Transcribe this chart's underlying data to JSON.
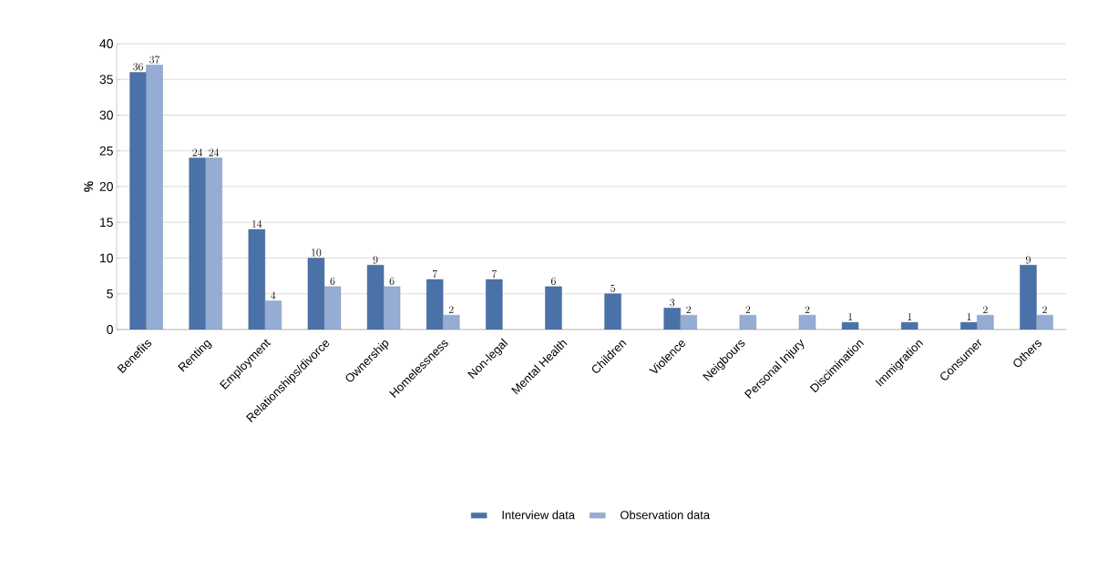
{
  "chart_data": {
    "type": "bar",
    "ylabel": "%",
    "categories": [
      "Benefits",
      "Renting",
      "Employment",
      "Relationships/divorce",
      "Ownership",
      "Homelessness",
      "Non-legal",
      "Mental Health",
      "Children",
      "Violence",
      "Neigbours",
      "Personal Injury",
      "Discimination",
      "Immigration",
      "Consumer",
      "Others"
    ],
    "series": [
      {
        "name": "Interview data",
        "color": "#4a72a8",
        "values": [
          36,
          24,
          14,
          10,
          9,
          7,
          7,
          6,
          5,
          3,
          null,
          null,
          1,
          1,
          1,
          9
        ]
      },
      {
        "name": "Observation data",
        "color": "#95acd4",
        "values": [
          37,
          24,
          4,
          6,
          6,
          2,
          null,
          null,
          null,
          2,
          2,
          2,
          null,
          null,
          2,
          2
        ]
      }
    ],
    "ylim": [
      0,
      40
    ],
    "yticks": [
      0,
      5,
      10,
      15,
      20,
      25,
      30,
      35,
      40
    ],
    "grid": "y",
    "legend": "bottom",
    "data_labels": true
  }
}
